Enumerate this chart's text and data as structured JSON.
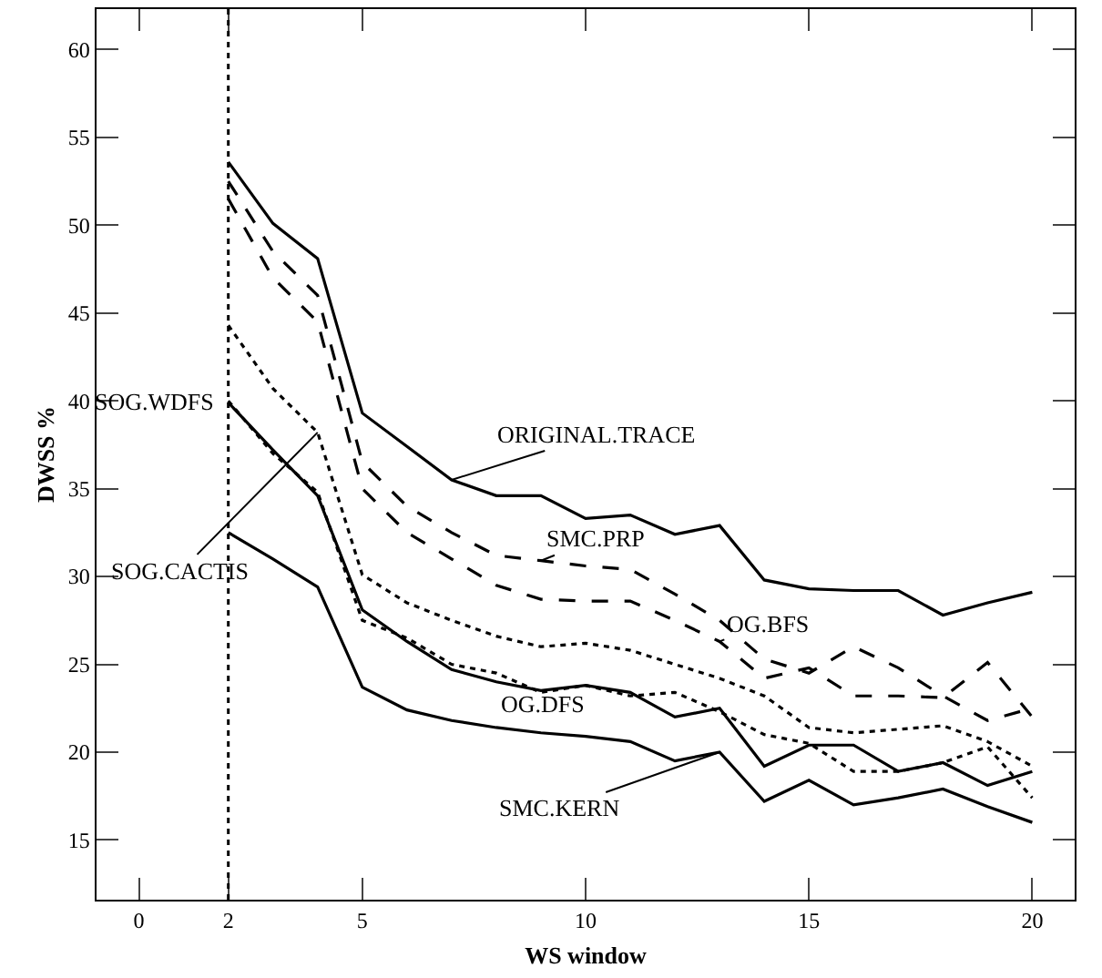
{
  "chart_data": {
    "type": "line",
    "xlabel": "WS window",
    "ylabel": "DWSS %",
    "xlim": [
      -0.95,
      20.95
    ],
    "ylim": [
      11.6,
      62.3
    ],
    "xticks": [
      0,
      2,
      5,
      10,
      15,
      20
    ],
    "yticks": [
      15,
      20,
      25,
      30,
      35,
      40,
      45,
      50,
      55,
      60
    ],
    "x": [
      2,
      3,
      4,
      5,
      6,
      7,
      8,
      9,
      10,
      11,
      12,
      13,
      14,
      15,
      16,
      17,
      18,
      19,
      20
    ],
    "grid": false,
    "legend": false,
    "ref_lines": [
      {
        "axis": "x",
        "value": 2,
        "line_style": "dotted",
        "color": "#000000"
      }
    ],
    "series": [
      {
        "name": "ORIGINAL.TRACE",
        "color": "#000000",
        "line_style": "solid",
        "values": [
          53.6,
          50.1,
          48.1,
          39.3,
          37.4,
          35.5,
          34.6,
          34.6,
          33.3,
          33.5,
          32.4,
          32.9,
          29.8,
          29.3,
          29.2,
          29.2,
          27.8,
          28.5,
          29.1
        ]
      },
      {
        "name": "SMC.PRP",
        "color": "#000000",
        "line_style": "dashed",
        "values": [
          52.5,
          48.5,
          46.0,
          36.5,
          34.0,
          32.5,
          31.2,
          30.9,
          30.6,
          30.4,
          29.0,
          27.5,
          25.3,
          24.5,
          26.0,
          24.8,
          23.2,
          21.8,
          22.5
        ]
      },
      {
        "name": "OG.BFS",
        "color": "#000000",
        "line_style": "dashed",
        "values": [
          51.5,
          47.0,
          44.5,
          35.0,
          32.5,
          31.0,
          29.5,
          28.7,
          28.6,
          28.6,
          27.5,
          26.3,
          24.2,
          24.8,
          23.2,
          23.2,
          23.1,
          25.1,
          22.0
        ]
      },
      {
        "name": "SOG.CACTIS",
        "color": "#000000",
        "line_style": "dotted",
        "values": [
          44.3,
          40.7,
          38.2,
          30.1,
          28.5,
          27.5,
          26.6,
          26.0,
          26.2,
          25.8,
          25.0,
          24.2,
          23.2,
          21.4,
          21.1,
          21.3,
          21.5,
          20.6,
          19.2
        ]
      },
      {
        "name": "OG.DFS",
        "color": "#000000",
        "line_style": "solid",
        "values": [
          39.9,
          37.2,
          34.6,
          28.1,
          26.3,
          24.7,
          24.0,
          23.5,
          23.8,
          23.4,
          22.0,
          22.5,
          19.2,
          20.4,
          20.4,
          18.9,
          19.4,
          18.1,
          18.9
        ]
      },
      {
        "name": "SOG.WDFS",
        "color": "#000000",
        "line_style": "dotted",
        "values": [
          40.0,
          37.0,
          34.8,
          27.5,
          26.5,
          25.0,
          24.5,
          23.4,
          23.8,
          23.2,
          23.4,
          22.3,
          21.0,
          20.5,
          18.9,
          18.9,
          19.4,
          20.3,
          17.4
        ]
      },
      {
        "name": "SMC.KERN",
        "color": "#000000",
        "line_style": "solid",
        "values": [
          32.5,
          31.0,
          29.4,
          23.7,
          22.4,
          21.8,
          21.4,
          21.1,
          20.9,
          20.6,
          19.5,
          20.0,
          17.2,
          18.4,
          17.0,
          17.4,
          17.9,
          16.9,
          16.0
        ]
      }
    ]
  }
}
